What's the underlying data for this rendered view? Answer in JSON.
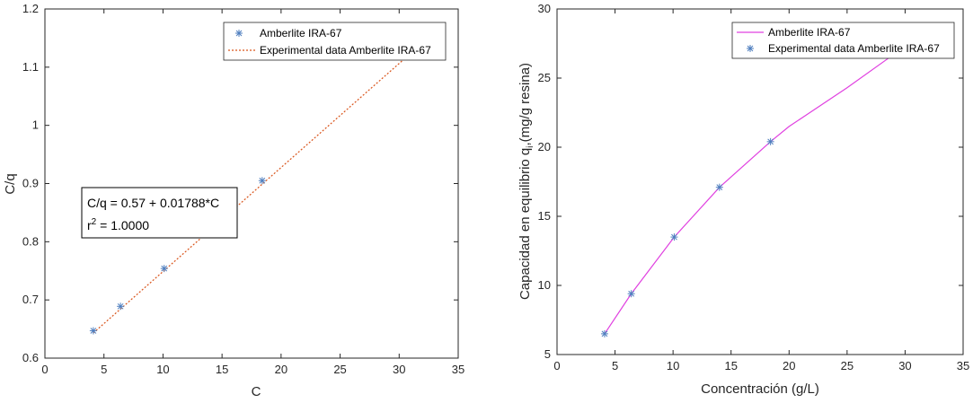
{
  "chart_data": [
    {
      "type": "scatter",
      "xlabel": "C",
      "ylabel": "C/q",
      "xlim": [
        0,
        35
      ],
      "ylim": [
        0.6,
        1.2
      ],
      "xticks": [
        "0",
        "5",
        "10",
        "15",
        "20",
        "25",
        "30",
        "35"
      ],
      "yticks": [
        "0.6",
        "0.7",
        "0.8",
        "0.9",
        "1",
        "1.1",
        "1.2"
      ],
      "grid": false,
      "legend_position": "top-right",
      "legend": [
        "Amberlite IRA-67",
        "Experimental data Amberlite IRA-67"
      ],
      "series": [
        {
          "name": "Amberlite IRA-67",
          "type": "scatter",
          "marker": "asterisk",
          "color": "#4f7fbf",
          "x": [
            4.1,
            6.4,
            10.1,
            14.0,
            18.4
          ],
          "y": [
            0.647,
            0.689,
            0.754,
            0.824,
            0.905
          ]
        },
        {
          "name": "Experimental data Amberlite IRA-67",
          "type": "line",
          "style": "dotted",
          "color": "#d95319",
          "fit": {
            "intercept": 0.57,
            "slope": 0.01788
          },
          "x": [
            4.1,
            30.5
          ],
          "y": [
            0.6433,
            1.1153
          ]
        }
      ],
      "annotation": {
        "line1": "C/q = 0.57 + 0.01788*C",
        "r_prefix": "r",
        "r_exp": "2",
        "r_rest": " = 1.0000"
      }
    },
    {
      "type": "line",
      "xlabel": "Concentración (g/L)",
      "ylabel_main": "Capacidad en equilibrio q",
      "ylabel_sub": "i",
      "ylabel_end": ",(mg/g resina)",
      "xlim": [
        0,
        35
      ],
      "ylim": [
        5,
        30
      ],
      "xticks": [
        "0",
        "5",
        "10",
        "15",
        "20",
        "25",
        "30",
        "35"
      ],
      "yticks": [
        "5",
        "10",
        "15",
        "20",
        "25",
        "30"
      ],
      "grid": false,
      "legend_position": "top-right",
      "legend": [
        "Amberlite IRA-67",
        "Experimental data Amberlite IRA-67"
      ],
      "series": [
        {
          "name": "Amberlite IRA-67",
          "type": "line",
          "color": "#e040e0",
          "x": [
            4.1,
            6.4,
            10.1,
            14.0,
            18.4,
            20,
            25,
            29
          ],
          "y": [
            6.5,
            9.4,
            13.5,
            17.1,
            20.4,
            21.5,
            24.3,
            26.7
          ]
        },
        {
          "name": "Experimental data Amberlite IRA-67",
          "type": "scatter",
          "marker": "asterisk",
          "color": "#4f7fbf",
          "x": [
            4.1,
            6.4,
            10.1,
            14.0,
            18.4
          ],
          "y": [
            6.5,
            9.4,
            13.5,
            17.1,
            20.4
          ]
        }
      ]
    }
  ]
}
